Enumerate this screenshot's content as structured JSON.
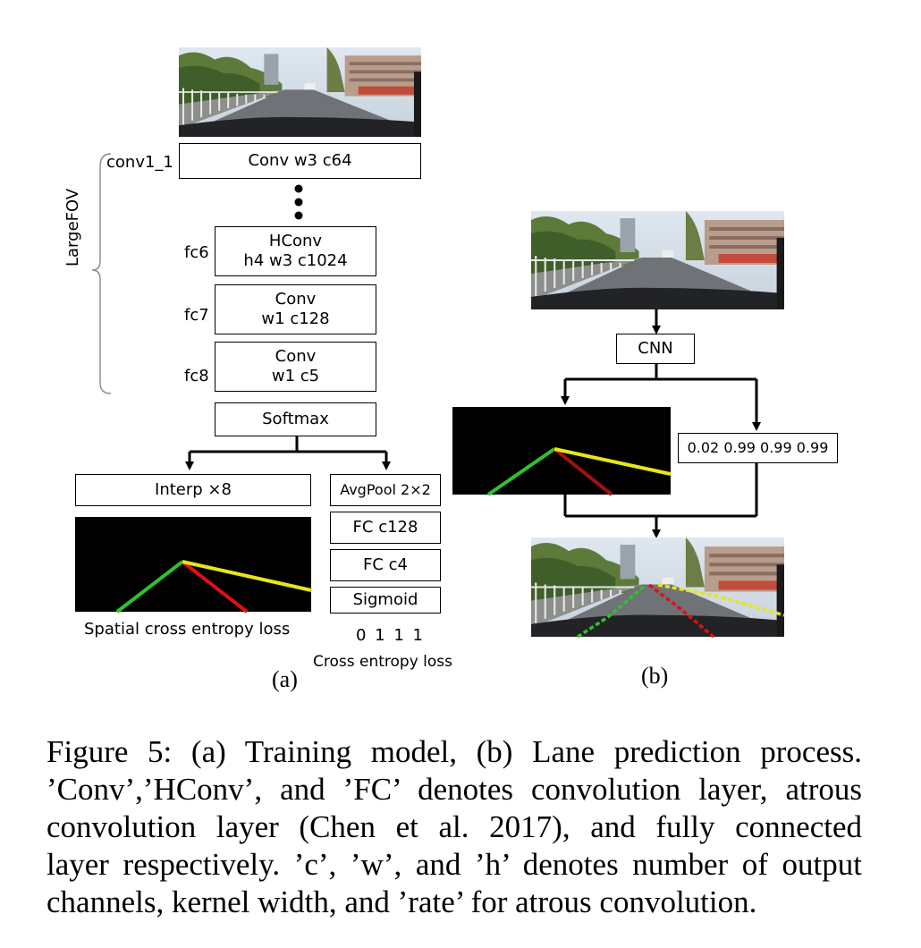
{
  "panel_a": {
    "layer_name": "conv1_1",
    "conv1_box": "Conv w3 c64",
    "group_label": "LargeFOV",
    "fc6": {
      "name": "fc6",
      "line1": "HConv",
      "line2": "h4 w3 c1024"
    },
    "fc7": {
      "name": "fc7",
      "line1": "Conv",
      "line2": "w1 c128"
    },
    "fc8": {
      "name": "fc8",
      "line1": "Conv",
      "line2": "w1 c5"
    },
    "softmax": "Softmax",
    "interp": "Interp ×8",
    "avgpool": "AvgPool 2×2",
    "fc_c128": "FC c128",
    "fc_c4": "FC c4",
    "sigmoid": "Sigmoid",
    "spatial_loss": "Spatial cross entropy loss",
    "existence_values": "0 1 1 1",
    "ce_loss": "Cross entropy loss",
    "panel_label": "(a)"
  },
  "panel_b": {
    "cnn": "CNN",
    "probabilities": "0.02 0.99 0.99 0.99",
    "panel_label": "(b)"
  },
  "caption": {
    "lines": [
      "Figure 5: (a) Training model, (b) Lane prediction process.",
      "’Conv’,’HConv’, and ’FC’ denotes convolution layer, atrous",
      "convolution layer (Chen et al. 2017), and fully connected",
      "layer respectively. ’c’, ’w’, and ’h’ denotes number of output",
      "channels, kernel width, and ’rate’ for atrous convolution."
    ]
  },
  "colors": {
    "lane_green": "#2fc12f",
    "lane_red": "#e01010",
    "lane_yellow": "#e6e61a",
    "lane_darkred": "#a01010"
  }
}
